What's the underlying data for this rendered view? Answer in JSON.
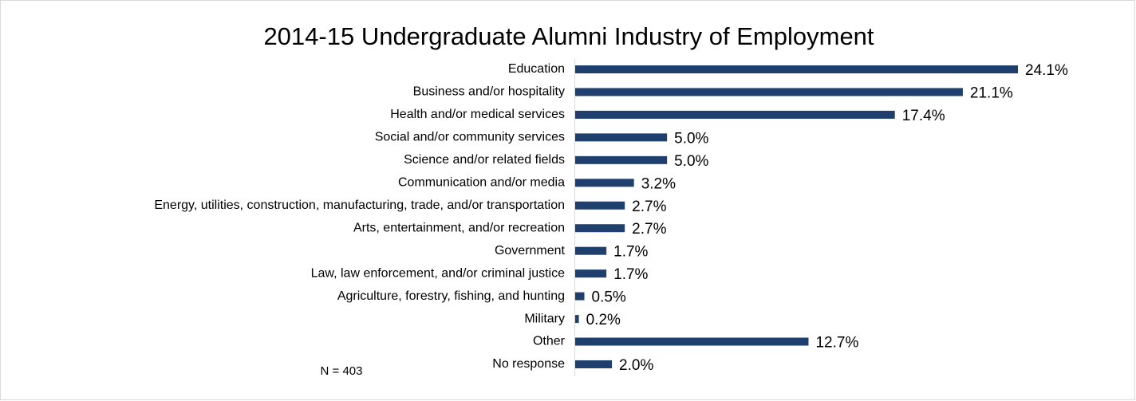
{
  "chart_data": {
    "type": "bar",
    "orientation": "horizontal",
    "title": "2014-15 Undergraduate Alumni Industry of Employment",
    "annotation": "N = 403",
    "color": "#1f3f6e",
    "categories": [
      "Education",
      "Business and/or hospitality",
      "Health and/or medical services",
      "Social and/or community services",
      "Science and/or related fields",
      "Communication and/or media",
      "Energy, utilities, construction, manufacturing, trade, and/or transportation",
      "Arts, entertainment, and/or recreation",
      "Government",
      "Law, law enforcement, and/or criminal justice",
      "Agriculture, forestry, fishing, and hunting",
      "Military",
      "Other",
      "No response"
    ],
    "values": [
      24.1,
      21.1,
      17.4,
      5.0,
      5.0,
      3.2,
      2.7,
      2.7,
      1.7,
      1.7,
      0.5,
      0.2,
      12.7,
      2.0
    ],
    "value_labels": [
      "24.1%",
      "21.1%",
      "17.4%",
      "5.0%",
      "5.0%",
      "3.2%",
      "2.7%",
      "2.7%",
      "1.7%",
      "1.7%",
      "0.5%",
      "0.2%",
      "12.7%",
      "2.0%"
    ]
  }
}
